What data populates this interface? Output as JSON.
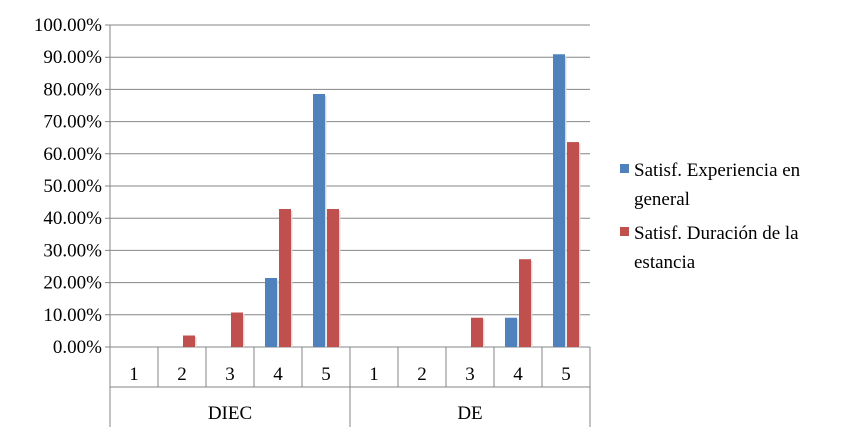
{
  "chart_data": {
    "type": "bar",
    "groups": [
      "DIEC",
      "DE"
    ],
    "categories": [
      "1",
      "2",
      "3",
      "4",
      "5"
    ],
    "ylim": [
      0,
      100
    ],
    "yticks": [
      "0.00%",
      "10.00%",
      "20.00%",
      "30.00%",
      "40.00%",
      "50.00%",
      "60.00%",
      "70.00%",
      "80.00%",
      "90.00%",
      "100.00%"
    ],
    "grid": true,
    "legend_position": "right",
    "series": [
      {
        "name": "Satisf. Experiencia en general",
        "name_lines": [
          "Satisf. Experiencia en",
          "general"
        ],
        "color": "#4F81BD",
        "values": [
          [
            0,
            0,
            0,
            21.43,
            78.57
          ],
          [
            0,
            0,
            0,
            9.09,
            90.91
          ]
        ]
      },
      {
        "name": "Satisf. Duración de la estancia",
        "name_lines": [
          "Satisf. Duración de la",
          "estancia"
        ],
        "color": "#C0504D",
        "values": [
          [
            0,
            3.57,
            10.71,
            42.86,
            42.86
          ],
          [
            0,
            0,
            9.09,
            27.27,
            63.64
          ]
        ]
      }
    ]
  }
}
